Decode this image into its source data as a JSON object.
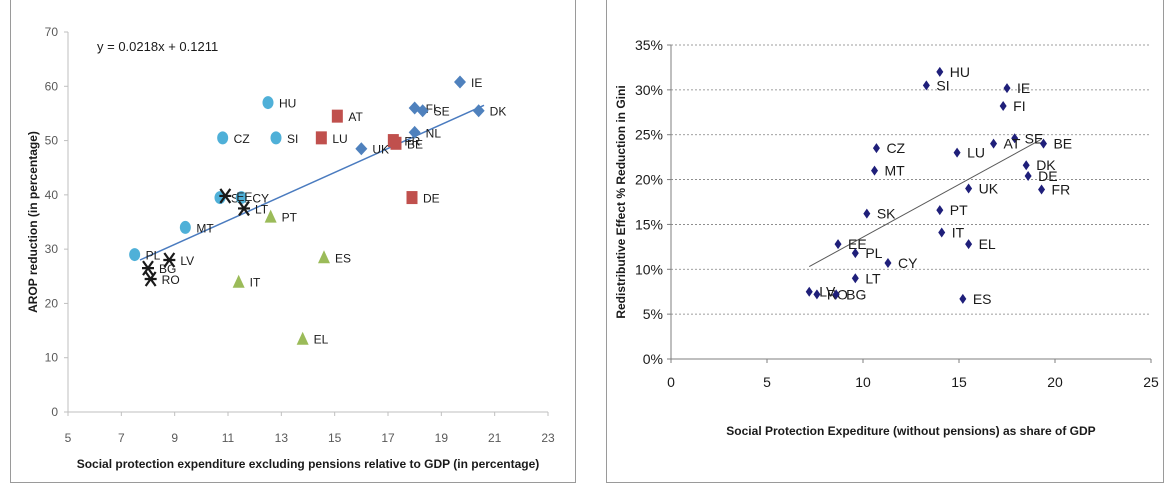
{
  "chart_data": [
    {
      "type": "scatter",
      "title": "",
      "xlabel": "Social protection expenditure excluding pensions relative to GDP (in percentage)",
      "ylabel": "AROP reduction  (in percentage)",
      "xlim": [
        5,
        23
      ],
      "ylim": [
        0,
        70
      ],
      "xticks": [
        "5",
        "7",
        "9",
        "11",
        "13",
        "15",
        "17",
        "19",
        "21",
        "23"
      ],
      "yticks": [
        "0",
        "10",
        "20",
        "30",
        "40",
        "50",
        "60",
        "70"
      ],
      "grid": false,
      "equation": "y = 0.0218x + 0.1211",
      "trendline": {
        "x": [
          7.7,
          20.6
        ],
        "y": [
          28.0,
          56.5
        ],
        "color": "#4a7bbf"
      },
      "colors": {
        "circle": "#4fb0d8",
        "square": "#c0504d",
        "triangle": "#9bbb59",
        "diamond": "#4f81bd",
        "cross": "#1a1a1a"
      },
      "points": [
        {
          "label": "HU",
          "x": 12.5,
          "y": 57.0,
          "marker": "circle"
        },
        {
          "label": "CZ",
          "x": 10.8,
          "y": 50.5,
          "marker": "circle"
        },
        {
          "label": "SI",
          "x": 12.8,
          "y": 50.5,
          "marker": "circle"
        },
        {
          "label": "SK",
          "x": 10.7,
          "y": 39.5,
          "marker": "circle"
        },
        {
          "label": "CY",
          "x": 11.5,
          "y": 39.5,
          "marker": "circle"
        },
        {
          "label": "MT",
          "x": 9.4,
          "y": 34.0,
          "marker": "circle"
        },
        {
          "label": "PL",
          "x": 7.5,
          "y": 29.0,
          "marker": "circle"
        },
        {
          "label": "AT",
          "x": 15.1,
          "y": 54.5,
          "marker": "square"
        },
        {
          "label": "LU",
          "x": 14.5,
          "y": 50.5,
          "marker": "square"
        },
        {
          "label": "FR",
          "x": 17.2,
          "y": 50.0,
          "marker": "square"
        },
        {
          "label": "BE",
          "x": 17.3,
          "y": 49.5,
          "marker": "square"
        },
        {
          "label": "DE",
          "x": 17.9,
          "y": 39.5,
          "marker": "square"
        },
        {
          "label": "PT",
          "x": 12.6,
          "y": 36.0,
          "marker": "triangle"
        },
        {
          "label": "ES",
          "x": 14.6,
          "y": 28.5,
          "marker": "triangle"
        },
        {
          "label": "IT",
          "x": 11.4,
          "y": 24.0,
          "marker": "triangle"
        },
        {
          "label": "EL",
          "x": 13.8,
          "y": 13.5,
          "marker": "triangle"
        },
        {
          "label": "IE",
          "x": 19.7,
          "y": 60.8,
          "marker": "diamond"
        },
        {
          "label": "DK",
          "x": 20.4,
          "y": 55.5,
          "marker": "diamond"
        },
        {
          "label": "FI",
          "x": 18.0,
          "y": 56.0,
          "marker": "diamond"
        },
        {
          "label": "SE",
          "x": 18.3,
          "y": 55.5,
          "marker": "diamond"
        },
        {
          "label": "NL",
          "x": 18.0,
          "y": 51.5,
          "marker": "diamond"
        },
        {
          "label": "UK",
          "x": 16.0,
          "y": 48.5,
          "marker": "diamond"
        },
        {
          "label": "EE",
          "x": 10.9,
          "y": 39.8,
          "marker": "cross"
        },
        {
          "label": "LT",
          "x": 11.6,
          "y": 37.5,
          "marker": "cross"
        },
        {
          "label": "LV",
          "x": 8.8,
          "y": 28.0,
          "marker": "cross"
        },
        {
          "label": "BG",
          "x": 8.0,
          "y": 26.5,
          "marker": "cross"
        },
        {
          "label": "RO",
          "x": 8.1,
          "y": 24.5,
          "marker": "cross"
        }
      ]
    },
    {
      "type": "scatter",
      "title": "",
      "xlabel": "Social Protection Expediture (without pensions) as share of GDP",
      "ylabel": "Redistributive Effect % Reduction in Gini",
      "xlim": [
        0,
        25
      ],
      "ylim": [
        0,
        35
      ],
      "xticks": [
        "0",
        "5",
        "10",
        "15",
        "20",
        "25"
      ],
      "yticks": [
        "0%",
        "5%",
        "10%",
        "15%",
        "20%",
        "25%",
        "30%",
        "35%"
      ],
      "grid": true,
      "trendline": {
        "x": [
          7.2,
          19.3
        ],
        "y": [
          10.3,
          24.5
        ],
        "color": "#595959"
      },
      "marker_color": "#1f1f7a",
      "points": [
        {
          "label": "HU",
          "x": 14.0,
          "y": 32.0
        },
        {
          "label": "SI",
          "x": 13.3,
          "y": 30.5
        },
        {
          "label": "IE",
          "x": 17.5,
          "y": 30.2
        },
        {
          "label": "FI",
          "x": 17.3,
          "y": 28.2
        },
        {
          "label": "SE",
          "x": 17.9,
          "y": 24.6
        },
        {
          "label": "BE",
          "x": 19.4,
          "y": 24.0
        },
        {
          "label": "AT",
          "x": 16.8,
          "y": 24.0
        },
        {
          "label": "CZ",
          "x": 10.7,
          "y": 23.5
        },
        {
          "label": "LU",
          "x": 14.9,
          "y": 23.0
        },
        {
          "label": "DK",
          "x": 18.5,
          "y": 21.6
        },
        {
          "label": "MT",
          "x": 10.6,
          "y": 21.0
        },
        {
          "label": "DE",
          "x": 18.6,
          "y": 20.4
        },
        {
          "label": "UK",
          "x": 15.5,
          "y": 19.0
        },
        {
          "label": "FR",
          "x": 19.3,
          "y": 18.9
        },
        {
          "label": "PT",
          "x": 14.0,
          "y": 16.6
        },
        {
          "label": "SK",
          "x": 10.2,
          "y": 16.2
        },
        {
          "label": "IT",
          "x": 14.1,
          "y": 14.1
        },
        {
          "label": "EL",
          "x": 15.5,
          "y": 12.8
        },
        {
          "label": "EE",
          "x": 8.7,
          "y": 12.8
        },
        {
          "label": "PL",
          "x": 9.6,
          "y": 11.8
        },
        {
          "label": "CY",
          "x": 11.3,
          "y": 10.7
        },
        {
          "label": "LT",
          "x": 9.6,
          "y": 9.0
        },
        {
          "label": "LV",
          "x": 7.2,
          "y": 7.5
        },
        {
          "label": "RO",
          "x": 7.6,
          "y": 7.2
        },
        {
          "label": "BG",
          "x": 8.6,
          "y": 7.2
        },
        {
          "label": "ES",
          "x": 15.2,
          "y": 6.7
        }
      ]
    }
  ]
}
